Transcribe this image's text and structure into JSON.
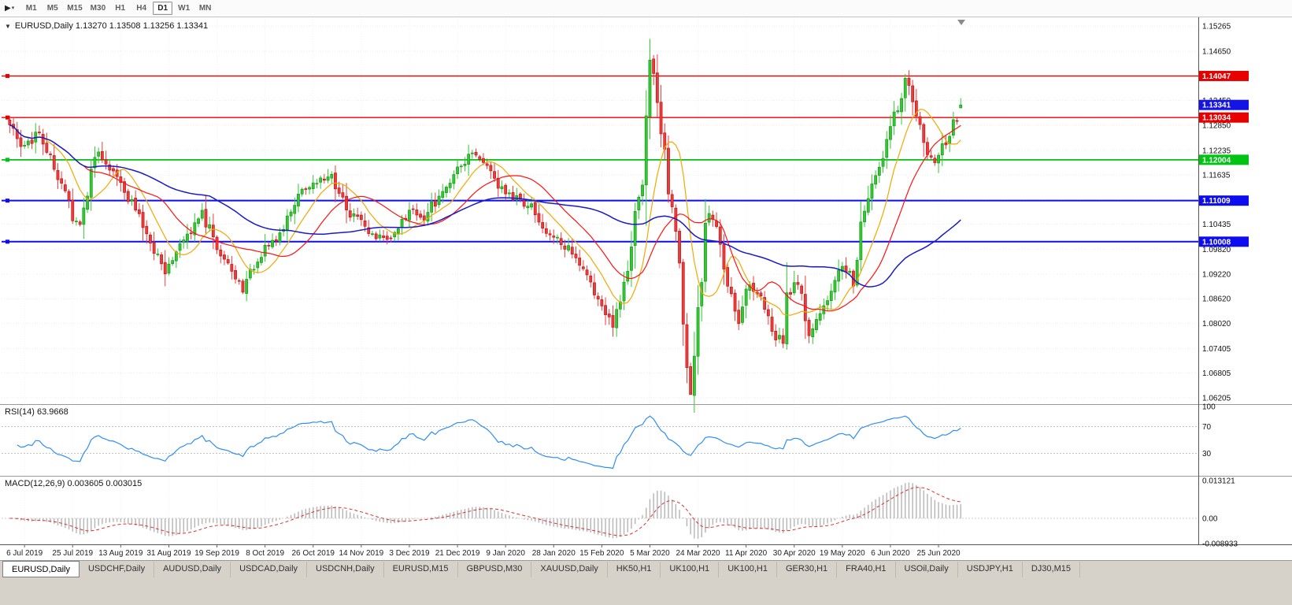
{
  "toolbar": {
    "timeframes": [
      "M1",
      "M5",
      "M15",
      "M30",
      "H1",
      "H4",
      "D1",
      "W1",
      "MN"
    ],
    "selected_timeframe": "D1"
  },
  "chart": {
    "title": "EURUSD,Daily 1.13270 1.13508 1.13256 1.13341",
    "symbol": "EURUSD,Daily",
    "open": "1.13270",
    "high": "1.13508",
    "low": "1.13256",
    "close": "1.13341",
    "price_axis_labels": [
      "1.15265",
      "1.14650",
      "1.14050",
      "1.13450",
      "1.12850",
      "1.12235",
      "1.11635",
      "1.11035",
      "1.10435",
      "1.09820",
      "1.09220",
      "1.08620",
      "1.08020",
      "1.07405",
      "1.06805",
      "1.06205"
    ],
    "date_axis": [
      "6 Jul 2019",
      "25 Jul 2019",
      "13 Aug 2019",
      "31 Aug 2019",
      "19 Sep 2019",
      "8 Oct 2019",
      "26 Oct 2019",
      "14 Nov 2019",
      "3 Dec 2019",
      "21 Dec 2019",
      "9 Jan 2020",
      "28 Jan 2020",
      "15 Feb 2020",
      "5 Mar 2020",
      "24 Mar 2020",
      "11 Apr 2020",
      "30 Apr 2020",
      "19 May 2020",
      "6 Jun 2020",
      "25 Jun 2020"
    ]
  },
  "indicators": {
    "rsi": {
      "label": "RSI(14) 63.9668",
      "name": "RSI",
      "period": 14,
      "value": "63.9668",
      "axis_labels": [
        "100",
        "70",
        "30"
      ]
    },
    "macd": {
      "label": "MACD(12,26,9) 0.003605 0.003015",
      "name": "MACD",
      "params": "12,26,9",
      "main": "0.003605",
      "signal": "0.003015",
      "axis_labels": [
        "0.013121",
        "0.00",
        "-0.008933"
      ]
    }
  },
  "tabs": [
    "EURUSD,Daily",
    "USDCHF,Daily",
    "AUDUSD,Daily",
    "USDCAD,Daily",
    "USDCNH,Daily",
    "EURUSD,M15",
    "GBPUSD,M30",
    "XAUUSD,Daily",
    "HK50,H1",
    "UK100,H1",
    "UK100,H1",
    "GER30,H1",
    "FRA40,H1",
    "USOil,Daily",
    "USDJPY,H1",
    "DJ30,M15"
  ],
  "active_tab": "EURUSD,Daily",
  "chart_data": {
    "type": "candlestick",
    "symbol": "EURUSD",
    "timeframe": "Daily",
    "candle_count": 258,
    "visible_range": {
      "start": "6 Jul 2019",
      "end": "3 Jul 2020"
    },
    "price_scale": {
      "top": 1.15265,
      "bottom": 1.06205,
      "grid_step": 0.006
    },
    "last_candle": {
      "open": 1.1327,
      "high": 1.13508,
      "low": 1.13256,
      "close": 1.13341
    },
    "spike_high": {
      "index": 173,
      "price": 1.1495
    },
    "crash_low": {
      "index": 184,
      "price": 1.0636
    },
    "price_anchors": [
      [
        0,
        1.128
      ],
      [
        4,
        1.1225
      ],
      [
        8,
        1.1268
      ],
      [
        13,
        1.116
      ],
      [
        17,
        1.1065
      ],
      [
        19,
        1.1035
      ],
      [
        23,
        1.1225
      ],
      [
        28,
        1.1165
      ],
      [
        33,
        1.1095
      ],
      [
        39,
        1.0985
      ],
      [
        42,
        1.0935
      ],
      [
        47,
        1.1005
      ],
      [
        52,
        1.107
      ],
      [
        56,
        1.099
      ],
      [
        60,
        1.0935
      ],
      [
        63,
        1.089
      ],
      [
        68,
        1.0975
      ],
      [
        74,
        1.103
      ],
      [
        79,
        1.1135
      ],
      [
        83,
        1.115
      ],
      [
        87,
        1.116
      ],
      [
        92,
        1.107
      ],
      [
        97,
        1.103
      ],
      [
        101,
        1.1
      ],
      [
        104,
        1.1015
      ],
      [
        108,
        1.1075
      ],
      [
        112,
        1.106
      ],
      [
        117,
        1.1125
      ],
      [
        122,
        1.1185
      ],
      [
        125,
        1.1215
      ],
      [
        128,
        1.119
      ],
      [
        132,
        1.1135
      ],
      [
        136,
        1.111
      ],
      [
        141,
        1.1085
      ],
      [
        145,
        1.1025
      ],
      [
        147,
        1.101
      ],
      [
        151,
        1.0985
      ],
      [
        156,
        1.0915
      ],
      [
        160,
        1.0845
      ],
      [
        163,
        1.0795
      ],
      [
        166,
        1.089
      ],
      [
        168,
        1.1
      ],
      [
        169,
        1.1055
      ],
      [
        171,
        1.113
      ],
      [
        173,
        1.144
      ],
      [
        175,
        1.135
      ],
      [
        177,
        1.12
      ],
      [
        179,
        1.108
      ],
      [
        181,
        1.093
      ],
      [
        183,
        1.072
      ],
      [
        184,
        1.065
      ],
      [
        186,
        1.083
      ],
      [
        188,
        1.104
      ],
      [
        189,
        1.109
      ],
      [
        191,
        1.102
      ],
      [
        194,
        1.089
      ],
      [
        197,
        1.0815
      ],
      [
        200,
        1.09
      ],
      [
        203,
        1.087
      ],
      [
        206,
        1.0775
      ],
      [
        209,
        1.076
      ],
      [
        210,
        1.0865
      ],
      [
        213,
        1.0905
      ],
      [
        216,
        1.0785
      ],
      [
        219,
        1.0825
      ],
      [
        222,
        1.0885
      ],
      [
        225,
        1.0945
      ],
      [
        228,
        1.0905
      ],
      [
        231,
        1.1095
      ],
      [
        234,
        1.1165
      ],
      [
        237,
        1.1245
      ],
      [
        240,
        1.133
      ],
      [
        242,
        1.14
      ],
      [
        245,
        1.1305
      ],
      [
        248,
        1.1215
      ],
      [
        250,
        1.118
      ],
      [
        252,
        1.125
      ],
      [
        253,
        1.1235
      ],
      [
        255,
        1.1285
      ],
      [
        257,
        1.13341
      ]
    ],
    "horizontal_lines": [
      {
        "price": 1.14047,
        "label": "1.14047",
        "color": "#e80000",
        "width": 1.4
      },
      {
        "price": 1.13034,
        "label": "1.13034",
        "color": "#e80000",
        "width": 1.4
      },
      {
        "price": 1.12004,
        "label": "1.12004",
        "color": "#00c314",
        "width": 1.7
      },
      {
        "price": 1.11009,
        "label": "1.11009",
        "color": "#0d0df0",
        "width": 2
      },
      {
        "price": 1.10008,
        "label": "1.10008",
        "color": "#0d0df0",
        "width": 2
      }
    ],
    "current_price": {
      "price": 1.13341,
      "label": "1.13341",
      "color": "#1414e6"
    },
    "candle_colors": {
      "up_fill": "#30c930",
      "up_stroke": "#1d8a1d",
      "down_fill": "#f03a3a",
      "down_stroke": "#ad1414"
    },
    "moving_averages": [
      {
        "period": 10,
        "color": "#f2a800",
        "width": 1.2
      },
      {
        "period": 21,
        "color": "#ff1212",
        "width": 1.2
      },
      {
        "period": 55,
        "color": "#1a1ac8",
        "width": 1.5
      }
    ],
    "rsi": {
      "period": 14,
      "color": "#2e8ef0",
      "levels": [
        70,
        30
      ],
      "range": [
        0,
        100
      ]
    },
    "macd": {
      "fast": 12,
      "slow": 26,
      "signal": 9,
      "histogram_color": "#b4b4b4",
      "signal_color": "#e03030",
      "scale_max": 0.013121,
      "scale_min": -0.008933
    },
    "date_tick_candle_stride": 13,
    "date_tick_first_index": 4
  }
}
